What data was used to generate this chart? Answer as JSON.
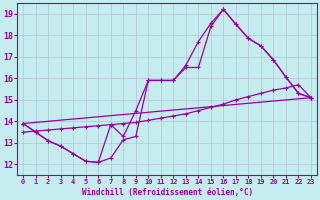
{
  "title": "",
  "xlabel": "Windchill (Refroidissement éolien,°C)",
  "ylabel": "",
  "xlim": [
    -0.5,
    23.5
  ],
  "ylim": [
    11.5,
    19.5
  ],
  "xticks": [
    0,
    1,
    2,
    3,
    4,
    5,
    6,
    7,
    8,
    9,
    10,
    11,
    12,
    13,
    14,
    15,
    16,
    17,
    18,
    19,
    20,
    21,
    22,
    23
  ],
  "yticks": [
    12,
    13,
    14,
    15,
    16,
    17,
    18,
    19
  ],
  "background_color": "#c5edef",
  "line_color": "#9900aa",
  "grid_color": "#b0c4d8",
  "line1_x": [
    0,
    1,
    2,
    3,
    4,
    5,
    6,
    7,
    8,
    9,
    10,
    11,
    12,
    13,
    14,
    15,
    16,
    17,
    18,
    19,
    20,
    21,
    22,
    23
  ],
  "line1_y": [
    13.9,
    13.5,
    13.1,
    12.85,
    12.5,
    12.15,
    12.1,
    12.3,
    13.15,
    13.3,
    15.9,
    15.9,
    15.9,
    16.6,
    17.7,
    18.55,
    19.2,
    18.5,
    17.85,
    17.5,
    16.85,
    16.05,
    15.3,
    15.1
  ],
  "line2_x": [
    0,
    1,
    2,
    3,
    4,
    5,
    6,
    7,
    8,
    9,
    10,
    11,
    12,
    13,
    14,
    15,
    16,
    17,
    18,
    19,
    20,
    21,
    22,
    23
  ],
  "line2_y": [
    13.9,
    13.5,
    13.1,
    12.85,
    12.5,
    12.15,
    12.1,
    13.85,
    13.3,
    14.5,
    15.9,
    15.9,
    15.9,
    16.5,
    16.5,
    18.4,
    19.2,
    18.5,
    17.85,
    17.5,
    16.85,
    16.05,
    15.3,
    15.1
  ],
  "line3_x": [
    0,
    1,
    2,
    3,
    4,
    5,
    6,
    7,
    8,
    9,
    10,
    11,
    12,
    13,
    14,
    15,
    16,
    17,
    18,
    19,
    20,
    21,
    22,
    23
  ],
  "line3_y": [
    13.5,
    13.55,
    13.6,
    13.65,
    13.7,
    13.75,
    13.8,
    13.85,
    13.9,
    13.95,
    14.05,
    14.15,
    14.25,
    14.35,
    14.5,
    14.65,
    14.8,
    15.0,
    15.15,
    15.3,
    15.45,
    15.55,
    15.7,
    15.1
  ],
  "line4_x": [
    0,
    23
  ],
  "line4_y": [
    13.9,
    15.1
  ]
}
